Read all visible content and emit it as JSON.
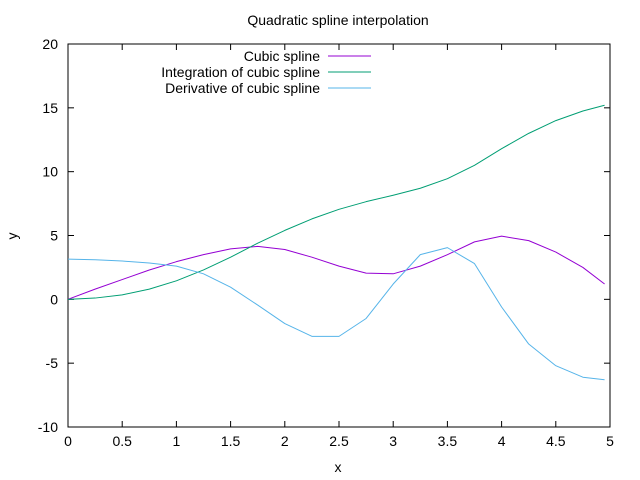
{
  "chart_data": {
    "type": "line",
    "title": "Quadratic spline interpolation",
    "xlabel": "x",
    "ylabel": "y",
    "xlim": [
      0,
      5
    ],
    "ylim": [
      -10,
      20
    ],
    "xticks": [
      0,
      0.5,
      1,
      1.5,
      2,
      2.5,
      3,
      3.5,
      4,
      4.5,
      5
    ],
    "xtick_labels": [
      "0",
      "0.5",
      "1",
      "1.5",
      "2",
      "2.5",
      "3",
      "3.5",
      "4",
      "4.5",
      "5"
    ],
    "yticks": [
      -10,
      -5,
      0,
      5,
      10,
      15,
      20
    ],
    "ytick_labels": [
      "-10",
      "-5",
      "0",
      "5",
      "10",
      "15",
      "20"
    ],
    "grid": false,
    "legend_position": "top-center",
    "series": [
      {
        "name": "Cubic spline",
        "color": "#9400d3",
        "points": [
          [
            0,
            0
          ],
          [
            0.25,
            0.8
          ],
          [
            0.5,
            1.55
          ],
          [
            0.75,
            2.3
          ],
          [
            1,
            2.95
          ],
          [
            1.25,
            3.5
          ],
          [
            1.5,
            3.95
          ],
          [
            1.75,
            4.15
          ],
          [
            2,
            3.9
          ],
          [
            2.25,
            3.3
          ],
          [
            2.5,
            2.6
          ],
          [
            2.75,
            2.05
          ],
          [
            3,
            2.0
          ],
          [
            3.25,
            2.6
          ],
          [
            3.5,
            3.5
          ],
          [
            3.75,
            4.5
          ],
          [
            4,
            4.95
          ],
          [
            4.25,
            4.6
          ],
          [
            4.5,
            3.7
          ],
          [
            4.75,
            2.5
          ],
          [
            4.95,
            1.2
          ]
        ]
      },
      {
        "name": "Integration of cubic spline",
        "color": "#009e73",
        "points": [
          [
            0,
            0
          ],
          [
            0.25,
            0.1
          ],
          [
            0.5,
            0.35
          ],
          [
            0.75,
            0.8
          ],
          [
            1,
            1.45
          ],
          [
            1.25,
            2.3
          ],
          [
            1.5,
            3.3
          ],
          [
            1.75,
            4.4
          ],
          [
            2,
            5.4
          ],
          [
            2.25,
            6.3
          ],
          [
            2.5,
            7.05
          ],
          [
            2.75,
            7.65
          ],
          [
            3,
            8.15
          ],
          [
            3.25,
            8.7
          ],
          [
            3.5,
            9.45
          ],
          [
            3.75,
            10.5
          ],
          [
            4,
            11.8
          ],
          [
            4.25,
            13.0
          ],
          [
            4.5,
            14.0
          ],
          [
            4.75,
            14.75
          ],
          [
            4.95,
            15.2
          ]
        ]
      },
      {
        "name": "Derivative of cubic spline",
        "color": "#56b4e9",
        "points": [
          [
            0,
            3.15
          ],
          [
            0.25,
            3.1
          ],
          [
            0.5,
            3.0
          ],
          [
            0.75,
            2.85
          ],
          [
            1,
            2.6
          ],
          [
            1.25,
            2.0
          ],
          [
            1.5,
            0.95
          ],
          [
            1.75,
            -0.45
          ],
          [
            2,
            -1.9
          ],
          [
            2.25,
            -2.9
          ],
          [
            2.5,
            -2.9
          ],
          [
            2.75,
            -1.5
          ],
          [
            3,
            1.2
          ],
          [
            3.25,
            3.5
          ],
          [
            3.5,
            4.05
          ],
          [
            3.75,
            2.8
          ],
          [
            4,
            -0.6
          ],
          [
            4.25,
            -3.5
          ],
          [
            4.5,
            -5.2
          ],
          [
            4.75,
            -6.1
          ],
          [
            4.95,
            -6.3
          ]
        ]
      }
    ]
  }
}
